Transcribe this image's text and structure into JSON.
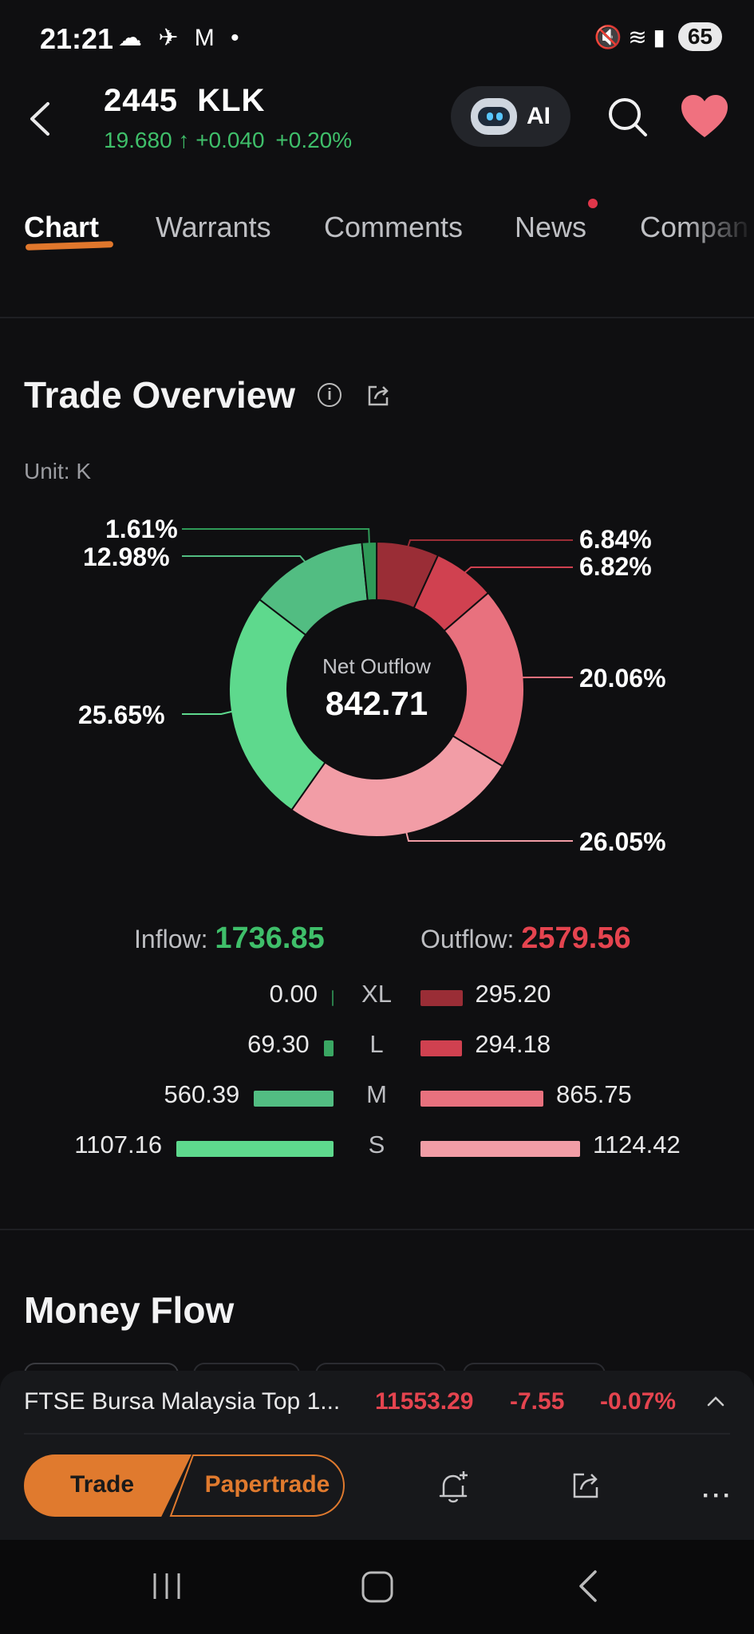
{
  "status_bar": {
    "time": "21:21",
    "left_icons": "☁ ✈ M •",
    "right_icons": "🔇 ≋ ▮",
    "battery": "65"
  },
  "header": {
    "title": "2445  KLK",
    "price": "19.680",
    "arrow": "↑",
    "change": "+0.040",
    "change_pct": "+0.20%",
    "ai_label": "AI",
    "colors": {
      "up": "#3fbf6a",
      "heart": "#f0717f"
    }
  },
  "tabs": [
    {
      "label": "Chart",
      "active": true
    },
    {
      "label": "Warrants"
    },
    {
      "label": "Comments"
    },
    {
      "label": "News",
      "badge": true
    },
    {
      "label": "Compan"
    }
  ],
  "trade_overview": {
    "title": "Trade Overview",
    "unit": "Unit: K",
    "center_caption": "Net Outflow",
    "center_value": "842.71",
    "chart_data": {
      "type": "pie",
      "variant": "donut",
      "slices": [
        {
          "label": "Outflow XL",
          "percent": 6.84,
          "color": "#9a2d36",
          "display": "6.84%"
        },
        {
          "label": "Outflow L",
          "percent": 6.82,
          "color": "#d04150",
          "display": "6.82%"
        },
        {
          "label": "Outflow M",
          "percent": 20.06,
          "color": "#e8717e",
          "display": "20.06%"
        },
        {
          "label": "Outflow S",
          "percent": 26.05,
          "color": "#f29da6",
          "display": "26.05%"
        },
        {
          "label": "Inflow S",
          "percent": 25.65,
          "color": "#5ed98d",
          "display": "25.65%"
        },
        {
          "label": "Inflow M",
          "percent": 12.98,
          "color": "#52bd82",
          "display": "12.98%"
        },
        {
          "label": "Inflow L",
          "percent": 1.61,
          "color": "#2f9a58",
          "display": "1.61%"
        },
        {
          "label": "Inflow XL",
          "percent": 0.0,
          "color": "#2a7d4a",
          "display": ""
        }
      ]
    },
    "inflow_label": "Inflow: ",
    "inflow_value": "1736.85",
    "outflow_label": "Outflow: ",
    "outflow_value": "2579.56",
    "rows": [
      {
        "cat": "XL",
        "inflow": "0.00",
        "outflow": "295.20",
        "in_val": 0.0,
        "out_val": 295.2,
        "out_color": "#9a2d36",
        "in_color": "#2a7d4a"
      },
      {
        "cat": "L",
        "inflow": "69.30",
        "outflow": "294.18",
        "in_val": 69.3,
        "out_val": 294.18,
        "out_color": "#d04150",
        "in_color": "#3aa763"
      },
      {
        "cat": "M",
        "inflow": "560.39",
        "outflow": "865.75",
        "in_val": 560.39,
        "out_val": 865.75,
        "out_color": "#e8717e",
        "in_color": "#52bd82"
      },
      {
        "cat": "S",
        "inflow": "1107.16",
        "outflow": "1124.42",
        "in_val": 1107.16,
        "out_val": 1124.42,
        "out_color": "#f29da6",
        "in_color": "#5ed98d"
      }
    ]
  },
  "money_flow": {
    "title": "Money Flow"
  },
  "bottom_ticker": {
    "name": "FTSE Bursa Malaysia Top 1...",
    "value": "11553.29",
    "change": "-7.55",
    "change_pct": "-0.07%"
  },
  "actions": {
    "trade_label": "Trade",
    "papertrade_label": "Papertrade",
    "accent": "#e07a2e"
  }
}
